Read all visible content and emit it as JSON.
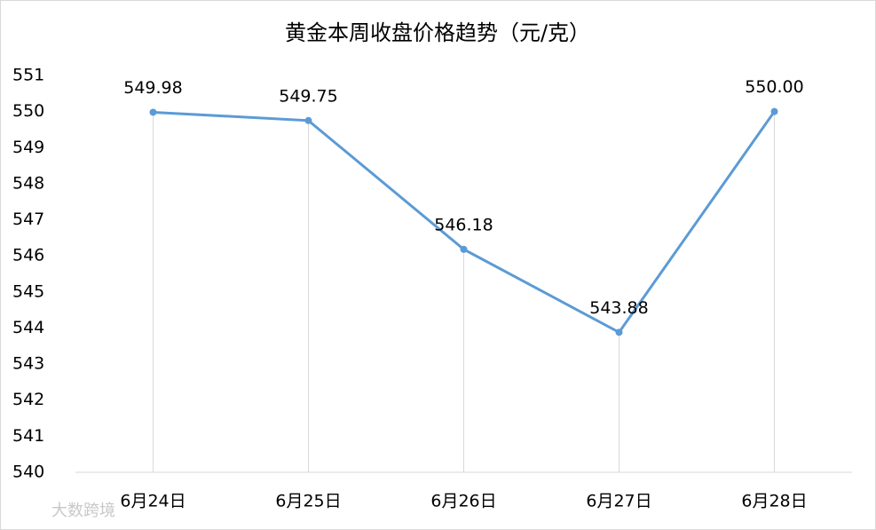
{
  "chart_data": {
    "type": "line",
    "title": "黄金本周收盘价格趋势（元/克）",
    "categories": [
      "6月24日",
      "6月25日",
      "6月26日",
      "6月27日",
      "6月28日"
    ],
    "values": [
      549.98,
      549.75,
      546.18,
      543.88,
      550
    ],
    "value_labels": [
      "549.98",
      "549.75",
      "546.18",
      "543.88",
      "550.00"
    ],
    "color": "#5b9bd5",
    "ylim": [
      540,
      551
    ],
    "yticks": [
      540,
      541,
      542,
      543,
      544,
      545,
      546,
      547,
      548,
      549,
      550,
      551
    ],
    "drop_lines": true,
    "watermark": "大数跨境"
  }
}
